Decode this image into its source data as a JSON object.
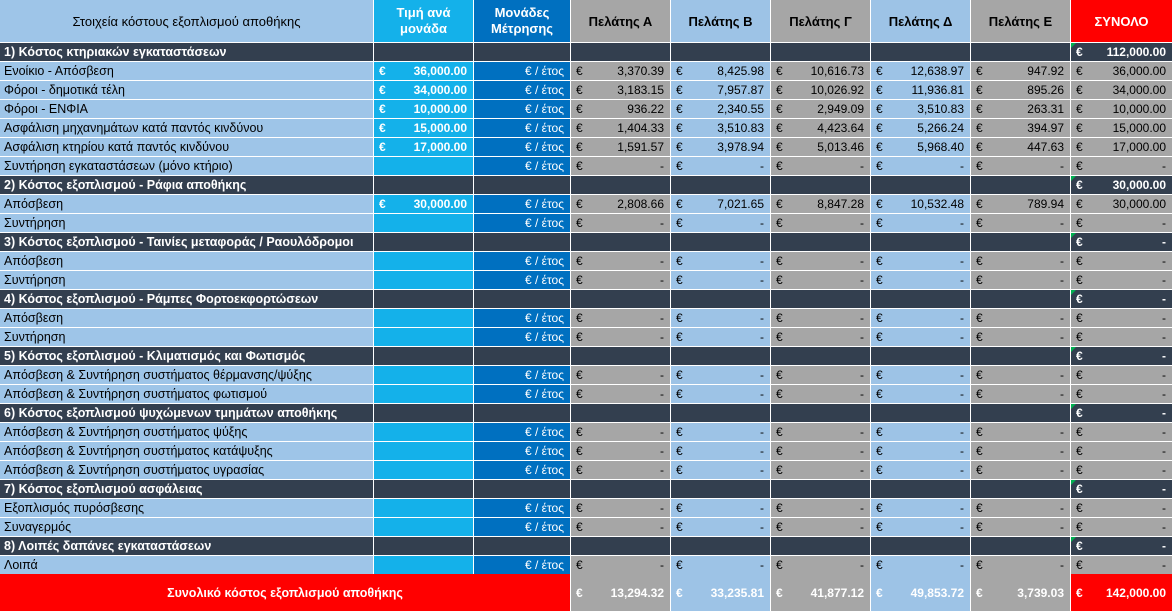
{
  "headers": {
    "description": "Στοιχεία κόστους εξοπλισμού αποθήκης",
    "unit_price_line1": "Τιμή ανά",
    "unit_price_line2": "μονάδα",
    "unit_measure_line1": "Μονάδες",
    "unit_measure_line2": "Μέτρησης",
    "client_a": "Πελάτης Α",
    "client_b": "Πελάτης Β",
    "client_c": "Πελάτης Γ",
    "client_d": "Πελάτης Δ",
    "client_e": "Πελάτης Ε",
    "total": "ΣΥΝΟΛΟ"
  },
  "currency_symbol": "€",
  "unit_label": "€ / έτος",
  "rows": [
    {
      "type": "section",
      "label": "1) Κόστος κτηριακών εγκαταστάσεων",
      "total": "112,000.00"
    },
    {
      "type": "item",
      "label": "Ενοίκιο - Απόσβεση",
      "price": "36,000.00",
      "a": "3,370.39",
      "b": "8,425.98",
      "c": "10,616.73",
      "d": "12,638.97",
      "e": "947.92",
      "total": "36,000.00"
    },
    {
      "type": "item",
      "label": "Φόροι - δημοτικά τέλη",
      "price": "34,000.00",
      "a": "3,183.15",
      "b": "7,957.87",
      "c": "10,026.92",
      "d": "11,936.81",
      "e": "895.26",
      "total": "34,000.00"
    },
    {
      "type": "item",
      "label": "Φόροι - ΕΝΦΙΑ",
      "price": "10,000.00",
      "a": "936.22",
      "b": "2,340.55",
      "c": "2,949.09",
      "d": "3,510.83",
      "e": "263.31",
      "total": "10,000.00"
    },
    {
      "type": "item",
      "label": "Ασφάλιση μηχανημάτων κατά παντός κινδύνου",
      "price": "15,000.00",
      "a": "1,404.33",
      "b": "3,510.83",
      "c": "4,423.64",
      "d": "5,266.24",
      "e": "394.97",
      "total": "15,000.00"
    },
    {
      "type": "item",
      "label": "Ασφάλιση κτηρίου κατά παντός κινδύνου",
      "price": "17,000.00",
      "a": "1,591.57",
      "b": "3,978.94",
      "c": "5,013.46",
      "d": "5,968.40",
      "e": "447.63",
      "total": "17,000.00"
    },
    {
      "type": "item",
      "label": "Συντήρηση εγκαταστάσεων (μόνο κτήριο)",
      "price": "",
      "a": "-",
      "b": "-",
      "c": "-",
      "d": "-",
      "e": "-",
      "total": "-"
    },
    {
      "type": "section",
      "label": "2) Κόστος εξοπλισμού - Ράφια αποθήκης",
      "total": "30,000.00"
    },
    {
      "type": "item",
      "label": "Απόσβεση",
      "price": "30,000.00",
      "a": "2,808.66",
      "b": "7,021.65",
      "c": "8,847.28",
      "d": "10,532.48",
      "e": "789.94",
      "total": "30,000.00"
    },
    {
      "type": "item",
      "label": "Συντήρηση",
      "price": "",
      "a": "-",
      "b": "-",
      "c": "-",
      "d": "-",
      "e": "-",
      "total": "-"
    },
    {
      "type": "section",
      "label": "3) Κόστος εξοπλισμού - Ταινίες μεταφοράς / Ραουλόδρομοι",
      "total": "-"
    },
    {
      "type": "item",
      "label": "Απόσβεση",
      "price": "",
      "a": "-",
      "b": "-",
      "c": "-",
      "d": "-",
      "e": "-",
      "total": "-"
    },
    {
      "type": "item",
      "label": "Συντήρηση",
      "price": "",
      "a": "-",
      "b": "-",
      "c": "-",
      "d": "-",
      "e": "-",
      "total": "-"
    },
    {
      "type": "section",
      "label": "4) Κόστος εξοπλισμού - Ράμπες Φορτοεκφορτώσεων",
      "total": "-"
    },
    {
      "type": "item",
      "label": "Απόσβεση",
      "price": "",
      "a": "-",
      "b": "-",
      "c": "-",
      "d": "-",
      "e": "-",
      "total": "-"
    },
    {
      "type": "item",
      "label": "Συντήρηση",
      "price": "",
      "a": "-",
      "b": "-",
      "c": "-",
      "d": "-",
      "e": "-",
      "total": "-"
    },
    {
      "type": "section",
      "label": "5) Κόστος εξοπλισμού - Κλιματισμός και Φωτισμός",
      "total": "-"
    },
    {
      "type": "item",
      "label": "Απόσβεση & Συντήρηση συστήματος θέρμανσης/ψύξης",
      "price": "",
      "a": "-",
      "b": "-",
      "c": "-",
      "d": "-",
      "e": "-",
      "total": "-"
    },
    {
      "type": "item",
      "label": "Απόσβεση & Συντήρηση συστήματος φωτισμού",
      "price": "",
      "a": "-",
      "b": "-",
      "c": "-",
      "d": "-",
      "e": "-",
      "total": "-"
    },
    {
      "type": "section",
      "label": "6) Κόστος εξοπλισμού ψυχώμενων τμημάτων αποθήκης",
      "total": "-"
    },
    {
      "type": "item",
      "label": "Απόσβεση & Συντήρηση συστήματος ψύξης",
      "price": "",
      "a": "-",
      "b": "-",
      "c": "-",
      "d": "-",
      "e": "-",
      "total": "-"
    },
    {
      "type": "item",
      "label": "Απόσβεση & Συντήρηση συστήματος κατάψυξης",
      "price": "",
      "a": "-",
      "b": "-",
      "c": "-",
      "d": "-",
      "e": "-",
      "total": "-"
    },
    {
      "type": "item",
      "label": "Απόσβεση & Συντήρηση συστήματος υγρασίας",
      "price": "",
      "a": "-",
      "b": "-",
      "c": "-",
      "d": "-",
      "e": "-",
      "total": "-"
    },
    {
      "type": "section",
      "label": "7) Κόστος εξοπλισμού ασφάλειας",
      "total": "-"
    },
    {
      "type": "item",
      "label": "Εξοπλισμός πυρόσβεσης",
      "price": "",
      "a": "-",
      "b": "-",
      "c": "-",
      "d": "-",
      "e": "-",
      "total": "-"
    },
    {
      "type": "item",
      "label": "Συναγερμός",
      "price": "",
      "a": "-",
      "b": "-",
      "c": "-",
      "d": "-",
      "e": "-",
      "total": "-"
    },
    {
      "type": "section",
      "label": "8) Λοιπές δαπάνες εγκαταστάσεων",
      "total": "-"
    },
    {
      "type": "item",
      "label": "Λοιπά",
      "price": "",
      "a": "-",
      "b": "-",
      "c": "-",
      "d": "-",
      "e": "-",
      "total": "-"
    }
  ],
  "grand_total": {
    "label": "Συνολικό κόστος εξοπλισμού αποθήκης",
    "a": "13,294.32",
    "b": "33,235.81",
    "c": "41,877.12",
    "d": "49,853.72",
    "e": "3,739.03",
    "total": "142,000.00"
  },
  "colors": {
    "section_bg": "#333f4f",
    "label_bg": "#9ec5e8",
    "price_bg": "#14b1ea",
    "unit_bg": "#0070c0",
    "grey_col": "#a6a6a6",
    "blue_col": "#9dc3e6",
    "total_red": "#ff0000"
  }
}
